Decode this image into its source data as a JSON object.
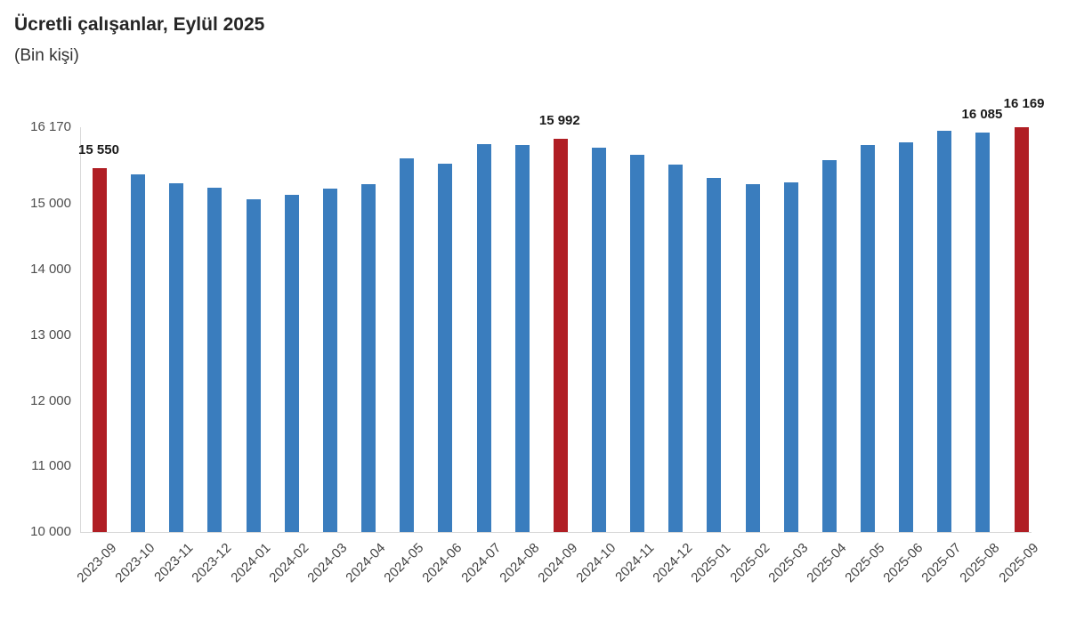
{
  "title": "Ücretli çalışanlar, Eylül 2025",
  "subtitle": "(Bin kişi)",
  "colors": {
    "bar": "#3a7dbe",
    "highlight": "#b01e24",
    "axis_line": "#d9d9d9",
    "tick_text": "#4d4d4d",
    "data_label_text": "#1a1a1a"
  },
  "chart_data": {
    "type": "bar",
    "title": "Ücretli çalışanlar, Eylül 2025",
    "subtitle": "(Bin kişi)",
    "ylabel": "Bin kişi",
    "xlabel": "",
    "ylim": [
      10000,
      16170
    ],
    "grid": false,
    "legend": false,
    "categories": [
      "2023-09",
      "2023-10",
      "2023-11",
      "2023-12",
      "2024-01",
      "2024-02",
      "2024-03",
      "2024-04",
      "2024-05",
      "2024-06",
      "2024-07",
      "2024-08",
      "2024-09",
      "2024-10",
      "2024-11",
      "2024-12",
      "2025-01",
      "2025-02",
      "2025-03",
      "2025-04",
      "2025-05",
      "2025-06",
      "2025-07",
      "2025-08",
      "2025-09"
    ],
    "values": [
      15550,
      15450,
      15310,
      15250,
      15070,
      15140,
      15240,
      15300,
      15700,
      15615,
      15910,
      15905,
      15992,
      15860,
      15745,
      15600,
      15400,
      15305,
      15330,
      15670,
      15895,
      15940,
      16110,
      16085,
      16169
    ],
    "highlighted_categories": [
      "2023-09",
      "2024-09",
      "2025-09"
    ],
    "data_labels": [
      {
        "category": "2023-09",
        "text": "15 550"
      },
      {
        "category": "2024-09",
        "text": "15 992"
      },
      {
        "category": "2025-08",
        "text": "16 085"
      },
      {
        "category": "2025-09",
        "text": "16 169"
      }
    ],
    "yticks": [
      {
        "label": "16 170",
        "value": 16170
      },
      {
        "label": "15 000",
        "value": 15000
      },
      {
        "label": "14 000",
        "value": 14000
      },
      {
        "label": "13 000",
        "value": 13000
      },
      {
        "label": "12 000",
        "value": 12000
      },
      {
        "label": "11 000",
        "value": 11000
      },
      {
        "label": "10 000",
        "value": 10000
      }
    ]
  }
}
